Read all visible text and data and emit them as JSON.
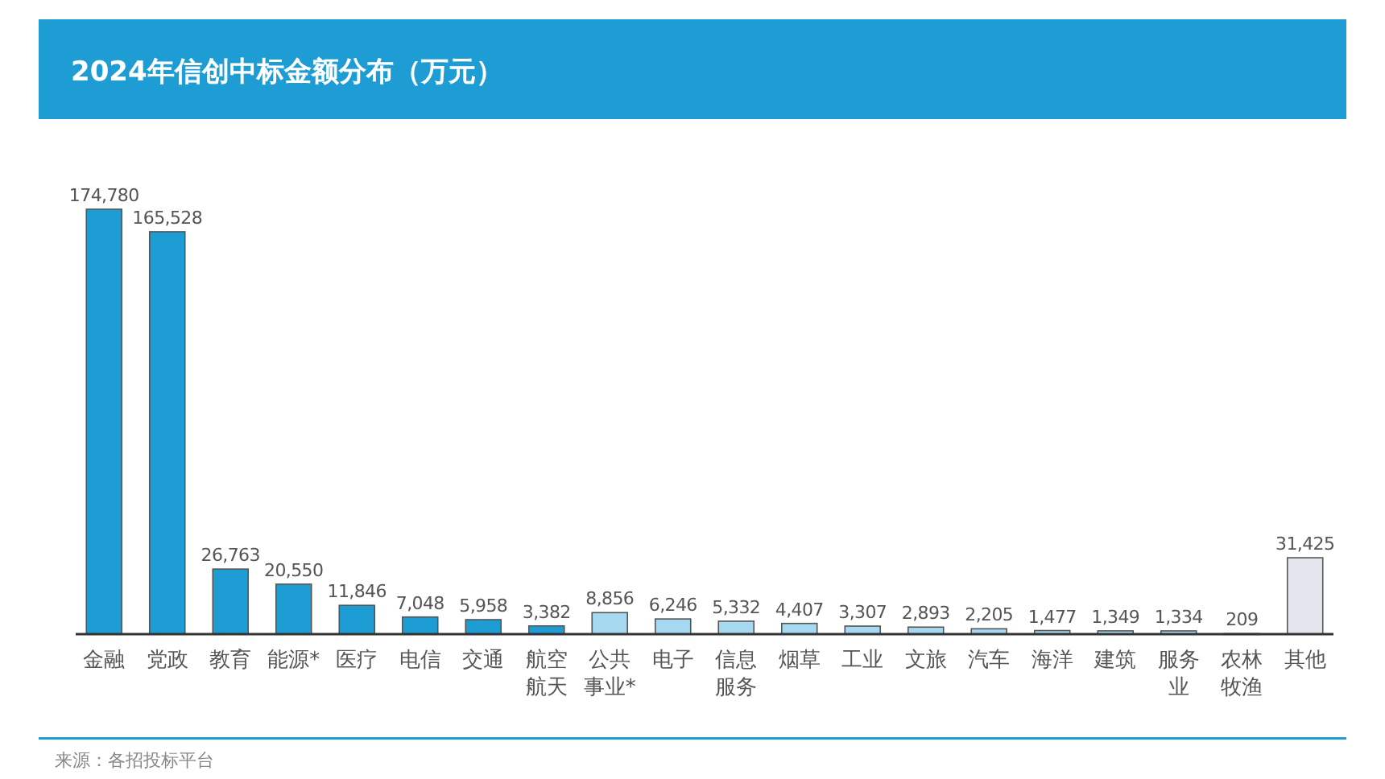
{
  "chart_data": {
    "type": "bar",
    "title": "2024年信创中标金额分布（万元）",
    "categories": [
      "金融",
      "党政",
      "教育",
      "能源*",
      "医疗",
      "电信",
      "交通",
      "航空航天",
      "公共事业*",
      "电子",
      "信息服务",
      "烟草",
      "工业",
      "文旅",
      "汽车",
      "海洋",
      "建筑",
      "服务业",
      "农林牧渔",
      "其他"
    ],
    "values": [
      174780,
      165528,
      26763,
      20550,
      11846,
      7048,
      5958,
      3382,
      8856,
      6246,
      5332,
      4407,
      3307,
      2893,
      2205,
      1477,
      1349,
      1334,
      209,
      31425
    ],
    "colors": [
      "#1e9dd4",
      "#1e9dd4",
      "#1e9dd4",
      "#1e9dd4",
      "#1e9dd4",
      "#1e9dd4",
      "#1e9dd4",
      "#1e9dd4",
      "#a6d9ef",
      "#a6d9ef",
      "#a6d9ef",
      "#a6d9ef",
      "#a6d9ef",
      "#a6d9ef",
      "#a6d9ef",
      "#a6d9ef",
      "#a6d9ef",
      "#a6d9ef",
      "#a6d9ef",
      "#e3e6ec"
    ],
    "value_labels": [
      "174,780",
      "165,528",
      "26,763",
      "20,550",
      "11,846",
      "7,048",
      "5,958",
      "3,382",
      "8,856",
      "6,246",
      "5,332",
      "4,407",
      "3,307",
      "2,893",
      "2,205",
      "1,477",
      "1,349",
      "1,334",
      "209",
      "31,425"
    ],
    "annotations": [
      "来源：各招投标平台"
    ]
  }
}
